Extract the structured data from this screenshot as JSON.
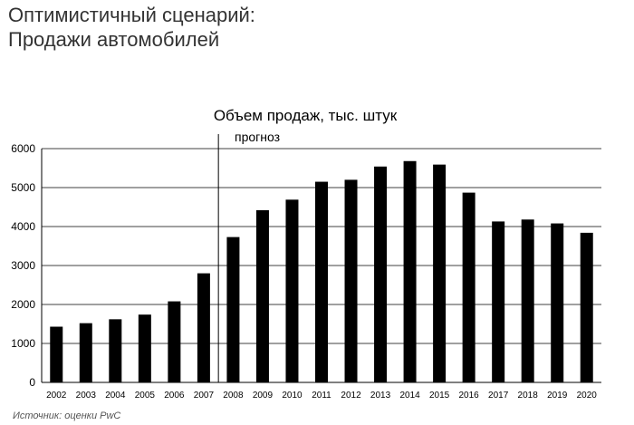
{
  "heading": {
    "line1": "Оптимистичный сценарий:",
    "line2": "Продажи автомобилей"
  },
  "source": "Источник: оценки PwC",
  "chart_data": {
    "type": "bar",
    "title": "Объем продаж, тыс. штук",
    "annotation": "прогноз",
    "annotation_before_category": "2008",
    "categories": [
      "2002",
      "2003",
      "2004",
      "2005",
      "2006",
      "2007",
      "2008",
      "2009",
      "2010",
      "2011",
      "2012",
      "2013",
      "2014",
      "2015",
      "2016",
      "2017",
      "2018",
      "2019",
      "2020"
    ],
    "values": [
      1430,
      1520,
      1620,
      1740,
      2080,
      2800,
      3730,
      4420,
      4690,
      5150,
      5200,
      5540,
      5680,
      5590,
      4870,
      4130,
      4180,
      4080,
      3840
    ],
    "ylim": [
      0,
      6000
    ],
    "yticks": [
      0,
      1000,
      2000,
      3000,
      4000,
      5000,
      6000
    ],
    "grid": true,
    "legend": false,
    "bar_color": "#000000",
    "grid_color": "#000000"
  }
}
